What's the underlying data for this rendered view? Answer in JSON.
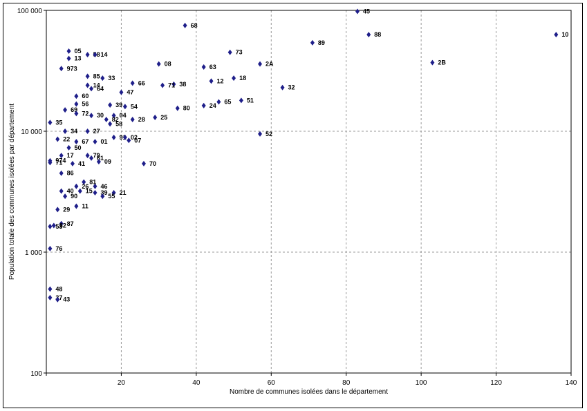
{
  "chart_data": {
    "type": "scatter",
    "xlabel": "Nombre de communes isolées dans le département",
    "ylabel": "Population totale des communes isolées par département",
    "xlim": [
      0,
      140
    ],
    "ylim": [
      100,
      100000
    ],
    "y_scale": "log",
    "grid": true,
    "x_ticks": [
      "",
      "20",
      "40",
      "60",
      "80",
      "100",
      "120",
      "140"
    ],
    "y_ticks": [
      "100",
      "1 000",
      "10 000",
      "100 000"
    ],
    "marker_color": "#1f1f8a",
    "points": [
      {
        "label": "45",
        "x": 83,
        "y": 98000
      },
      {
        "label": "68",
        "x": 37,
        "y": 75000
      },
      {
        "label": "10",
        "x": 136,
        "y": 63000
      },
      {
        "label": "88",
        "x": 86,
        "y": 63000
      },
      {
        "label": "89",
        "x": 71,
        "y": 54000
      },
      {
        "label": "05",
        "x": 6,
        "y": 46000
      },
      {
        "label": "73",
        "x": 49,
        "y": 45000
      },
      {
        "label": "58",
        "x": 11,
        "y": 43000
      },
      {
        "label": "14",
        "x": 13,
        "y": 43000
      },
      {
        "label": "13",
        "x": 6,
        "y": 40000
      },
      {
        "label": "2B",
        "x": 103,
        "y": 37000
      },
      {
        "label": "08",
        "x": 30,
        "y": 36000
      },
      {
        "label": "2A",
        "x": 57,
        "y": 36000
      },
      {
        "label": "63",
        "x": 42,
        "y": 34000
      },
      {
        "label": "973",
        "x": 4,
        "y": 33000
      },
      {
        "label": "85",
        "x": 11,
        "y": 28500
      },
      {
        "label": "33",
        "x": 15,
        "y": 27500
      },
      {
        "label": "18",
        "x": 50,
        "y": 27500
      },
      {
        "label": "12",
        "x": 44,
        "y": 26000
      },
      {
        "label": "66",
        "x": 23,
        "y": 25000
      },
      {
        "label": "38",
        "x": 34,
        "y": 24500
      },
      {
        "label": "71",
        "x": 31,
        "y": 24000
      },
      {
        "label": "14",
        "x": 11,
        "y": 24000
      },
      {
        "label": "32",
        "x": 63,
        "y": 23000
      },
      {
        "label": "64",
        "x": 12,
        "y": 22500
      },
      {
        "label": "47",
        "x": 20,
        "y": 21000
      },
      {
        "label": "60",
        "x": 8,
        "y": 19500
      },
      {
        "label": "51",
        "x": 52,
        "y": 18000
      },
      {
        "label": "65",
        "x": 46,
        "y": 17500
      },
      {
        "label": "56",
        "x": 8,
        "y": 16800
      },
      {
        "label": "39",
        "x": 17,
        "y": 16500
      },
      {
        "label": "24",
        "x": 42,
        "y": 16300
      },
      {
        "label": "54",
        "x": 21,
        "y": 16000
      },
      {
        "label": "80",
        "x": 35,
        "y": 15500
      },
      {
        "label": "69",
        "x": 5,
        "y": 15000
      },
      {
        "label": "72",
        "x": 8,
        "y": 14000
      },
      {
        "label": "30",
        "x": 12,
        "y": 13500
      },
      {
        "label": "04",
        "x": 18,
        "y": 13500
      },
      {
        "label": "25",
        "x": 29,
        "y": 13000
      },
      {
        "label": "82",
        "x": 16,
        "y": 12500
      },
      {
        "label": "28",
        "x": 23,
        "y": 12500
      },
      {
        "label": "58",
        "x": 17,
        "y": 11500
      },
      {
        "label": "35",
        "x": 1,
        "y": 11800
      },
      {
        "label": "34",
        "x": 5,
        "y": 10000
      },
      {
        "label": "27",
        "x": 11,
        "y": 10000
      },
      {
        "label": "52",
        "x": 57,
        "y": 9500
      },
      {
        "label": "91",
        "x": 18,
        "y": 8900
      },
      {
        "label": "02",
        "x": 21,
        "y": 8900
      },
      {
        "label": "22",
        "x": 3,
        "y": 8600
      },
      {
        "label": "07",
        "x": 22,
        "y": 8400
      },
      {
        "label": "67",
        "x": 8,
        "y": 8200
      },
      {
        "label": "01",
        "x": 13,
        "y": 8200
      },
      {
        "label": "50",
        "x": 6,
        "y": 7300
      },
      {
        "label": "17",
        "x": 4,
        "y": 6300
      },
      {
        "label": "79",
        "x": 11,
        "y": 6300
      },
      {
        "label": "61",
        "x": 12,
        "y": 6000
      },
      {
        "label": "974",
        "x": 1,
        "y": 5700
      },
      {
        "label": "09",
        "x": 14,
        "y": 5600
      },
      {
        "label": "71",
        "x": 1,
        "y": 5500
      },
      {
        "label": "41",
        "x": 7,
        "y": 5400
      },
      {
        "label": "70",
        "x": 26,
        "y": 5400
      },
      {
        "label": "86",
        "x": 4,
        "y": 4500
      },
      {
        "label": "81",
        "x": 10,
        "y": 3800
      },
      {
        "label": "26",
        "x": 8,
        "y": 3500
      },
      {
        "label": "46",
        "x": 13,
        "y": 3500
      },
      {
        "label": "40",
        "x": 4,
        "y": 3200
      },
      {
        "label": "15",
        "x": 9,
        "y": 3200
      },
      {
        "label": "39",
        "x": 13,
        "y": 3100
      },
      {
        "label": "21",
        "x": 18,
        "y": 3100
      },
      {
        "label": "90",
        "x": 5,
        "y": 2900
      },
      {
        "label": "55",
        "x": 15,
        "y": 2900
      },
      {
        "label": "11",
        "x": 8,
        "y": 2400
      },
      {
        "label": "29",
        "x": 3,
        "y": 2250
      },
      {
        "label": "87",
        "x": 4,
        "y": 1720
      },
      {
        "label": "62",
        "x": 2,
        "y": 1660
      },
      {
        "label": "53",
        "x": 1,
        "y": 1630
      },
      {
        "label": "76",
        "x": 1,
        "y": 1070
      },
      {
        "label": "48",
        "x": 1,
        "y": 495
      },
      {
        "label": "37",
        "x": 1,
        "y": 420
      },
      {
        "label": "43",
        "x": 3,
        "y": 405
      }
    ]
  }
}
